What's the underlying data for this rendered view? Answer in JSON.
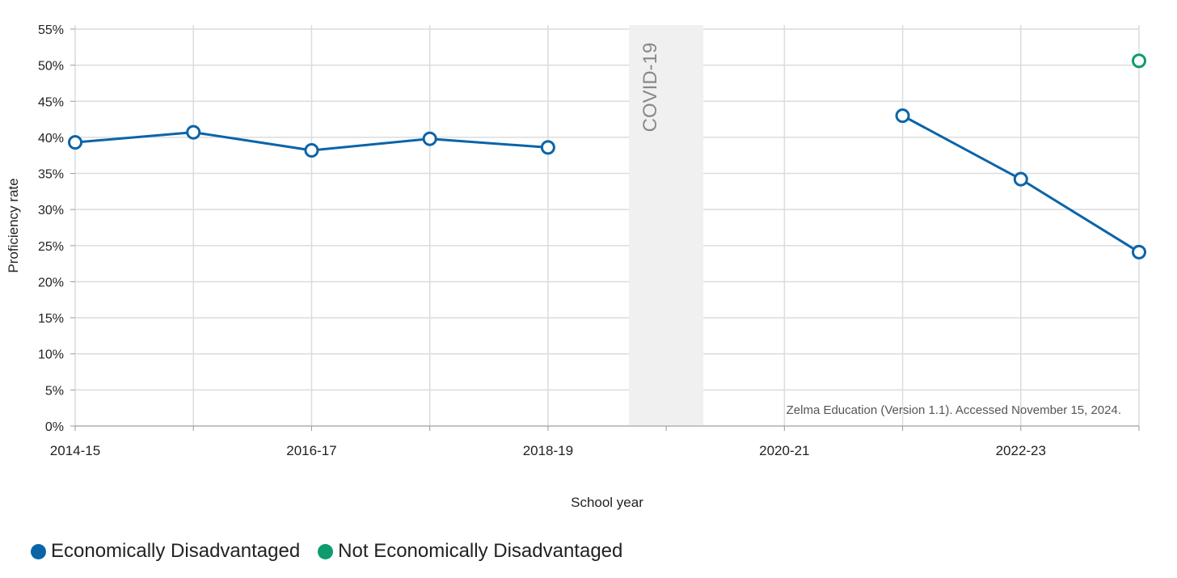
{
  "chart_data": {
    "type": "line",
    "title": "",
    "xlabel": "School year",
    "ylabel": "Proficiency rate",
    "x": [
      "2014-15",
      "2015-16",
      "2016-17",
      "2017-18",
      "2018-19",
      "2019-20",
      "2020-21",
      "2021-22",
      "2022-23",
      "2023-24"
    ],
    "x_tick_labels": [
      "2014-15",
      "2016-17",
      "2018-19",
      "2020-21",
      "2022-23"
    ],
    "y_ticks": [
      "0%",
      "5%",
      "10%",
      "15%",
      "20%",
      "25%",
      "30%",
      "35%",
      "40%",
      "45%",
      "50%",
      "55%"
    ],
    "ylim": [
      0,
      55
    ],
    "grid": true,
    "legend_position": "bottom-left",
    "series": [
      {
        "name": "Economically Disadvantaged",
        "color": "#0B64A8",
        "values": [
          39.3,
          40.7,
          38.2,
          39.8,
          38.6,
          null,
          null,
          43.0,
          34.2,
          24.1
        ]
      },
      {
        "name": "Not Economically Disadvantaged",
        "color": "#0E9B6E",
        "values": [
          null,
          null,
          null,
          null,
          null,
          null,
          null,
          null,
          null,
          50.6
        ]
      }
    ],
    "annotations": {
      "shaded_label": "COVID-19",
      "shaded_period": "2019-20",
      "source_note": "Zelma Education (Version 1.1). Accessed November 15, 2024."
    }
  },
  "legend": {
    "items": [
      {
        "label": "Economically Disadvantaged",
        "color": "#0B64A8"
      },
      {
        "label": "Not Economically Disadvantaged",
        "color": "#0E9B6E"
      }
    ]
  }
}
